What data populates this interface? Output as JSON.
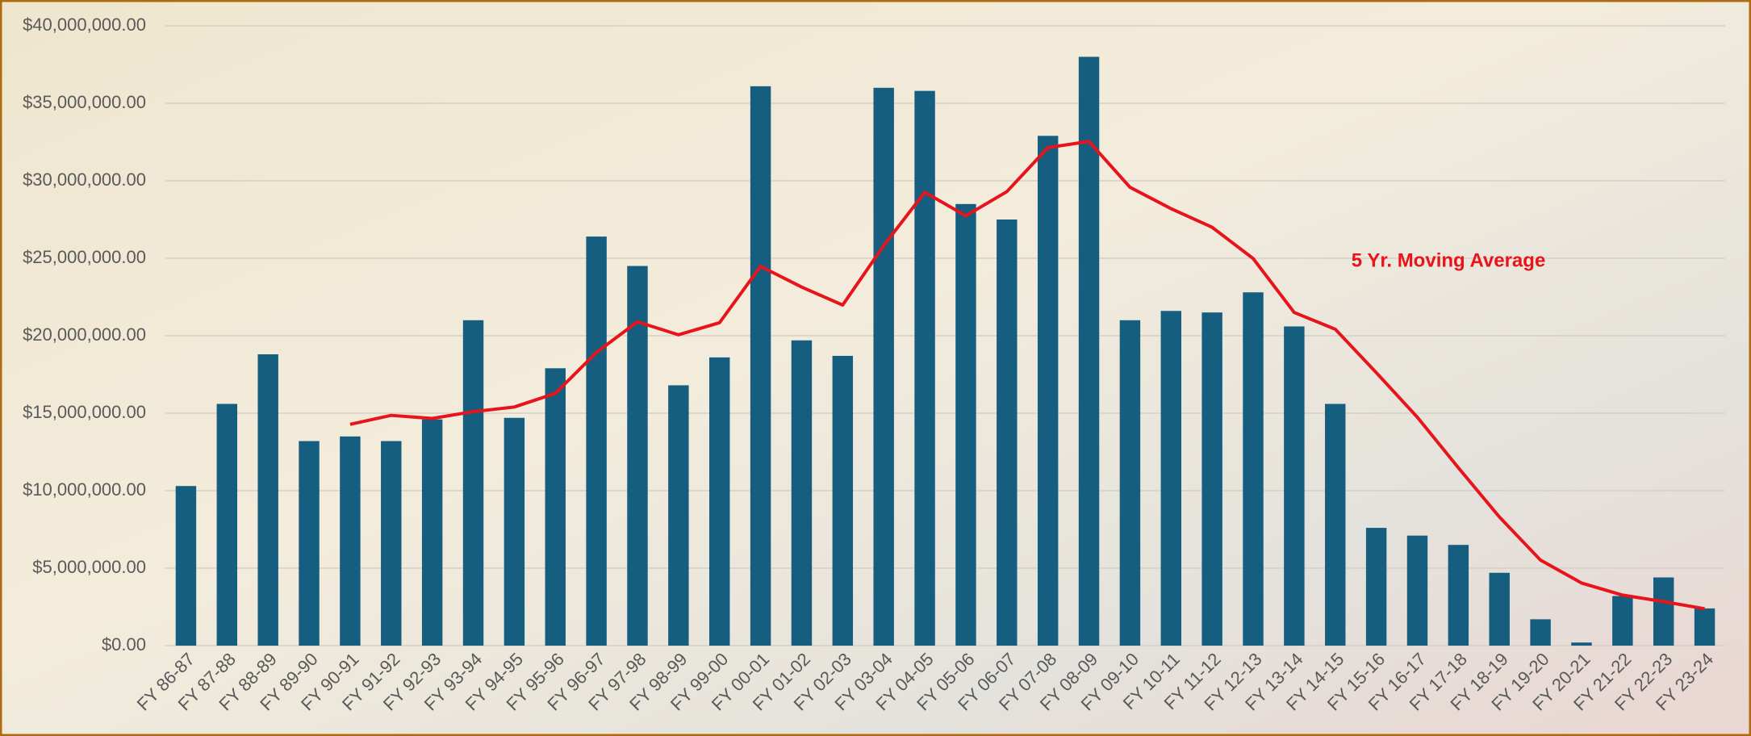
{
  "chart_data": {
    "type": "bar",
    "categories": [
      "FY 86-87",
      "FY 87-88",
      "FY 88-89",
      "FY 89-90",
      "FY 90-91",
      "FY 91-92",
      "FY 92-93",
      "FY 93-94",
      "FY 94-95",
      "FY 95-96",
      "FY 96-97",
      "FY 97-98",
      "FY 98-99",
      "FY 99-00",
      "FY 00-01",
      "FY 01-02",
      "FY 02-03",
      "FY 03-04",
      "FY 04-05",
      "FY 05-06",
      "FY 06-07",
      "FY 07-08",
      "FY 08-09",
      "FY 09-10",
      "FY 10-11",
      "FY 11-12",
      "FY 12-13",
      "FY 13-14",
      "FY 14-15",
      "FY 15-16",
      "FY 16-17",
      "FY 17-18",
      "FY 18-19",
      "FY 19-20",
      "FY 20-21",
      "FY 21-22",
      "FY 22-23",
      "FY 23-24"
    ],
    "series": [
      {
        "type": "bar",
        "color": "#155e80",
        "values": [
          10300000,
          15600000,
          18800000,
          13200000,
          13500000,
          13200000,
          14600000,
          21000000,
          14700000,
          17900000,
          26400000,
          24500000,
          16800000,
          18600000,
          36100000,
          19700000,
          18700000,
          36000000,
          35800000,
          28500000,
          27500000,
          32900000,
          38000000,
          21000000,
          21600000,
          21500000,
          22800000,
          20600000,
          15600000,
          7600000,
          7100000,
          6500000,
          4700000,
          1700000,
          200000,
          3200000,
          4400000,
          2400000
        ]
      },
      {
        "type": "line",
        "color": "#e8141b",
        "values": [
          null,
          null,
          null,
          null,
          14280000,
          14860000,
          14660000,
          15100000,
          15400000,
          16280000,
          18920000,
          20900000,
          20060000,
          20840000,
          24480000,
          23140000,
          21980000,
          25820000,
          29260000,
          27740000,
          29300000,
          32140000,
          32540000,
          29580000,
          28200000,
          27000000,
          24980000,
          21500000,
          20420000,
          17620000,
          14740000,
          11480000,
          8300000,
          5520000,
          4040000,
          3260000,
          2840000,
          2380000
        ]
      }
    ],
    "annotations": [
      {
        "text": "5 Yr. Moving Average",
        "x": "FY 14-15",
        "y": 25000000,
        "color": "#e8141b"
      }
    ],
    "ylim": [
      0,
      40000000
    ],
    "yticks": [
      {
        "value": 0,
        "label": "$0.00"
      },
      {
        "value": 5000000,
        "label": "$5,000,000.00"
      },
      {
        "value": 10000000,
        "label": "$10,000,000.00"
      },
      {
        "value": 15000000,
        "label": "$15,000,000.00"
      },
      {
        "value": 20000000,
        "label": "$20,000,000.00"
      },
      {
        "value": 25000000,
        "label": "$25,000,000.00"
      },
      {
        "value": 30000000,
        "label": "$30,000,000.00"
      },
      {
        "value": 35000000,
        "label": "$35,000,000.00"
      },
      {
        "value": 40000000,
        "label": "$40,000,000.00"
      }
    ],
    "grid": true
  }
}
